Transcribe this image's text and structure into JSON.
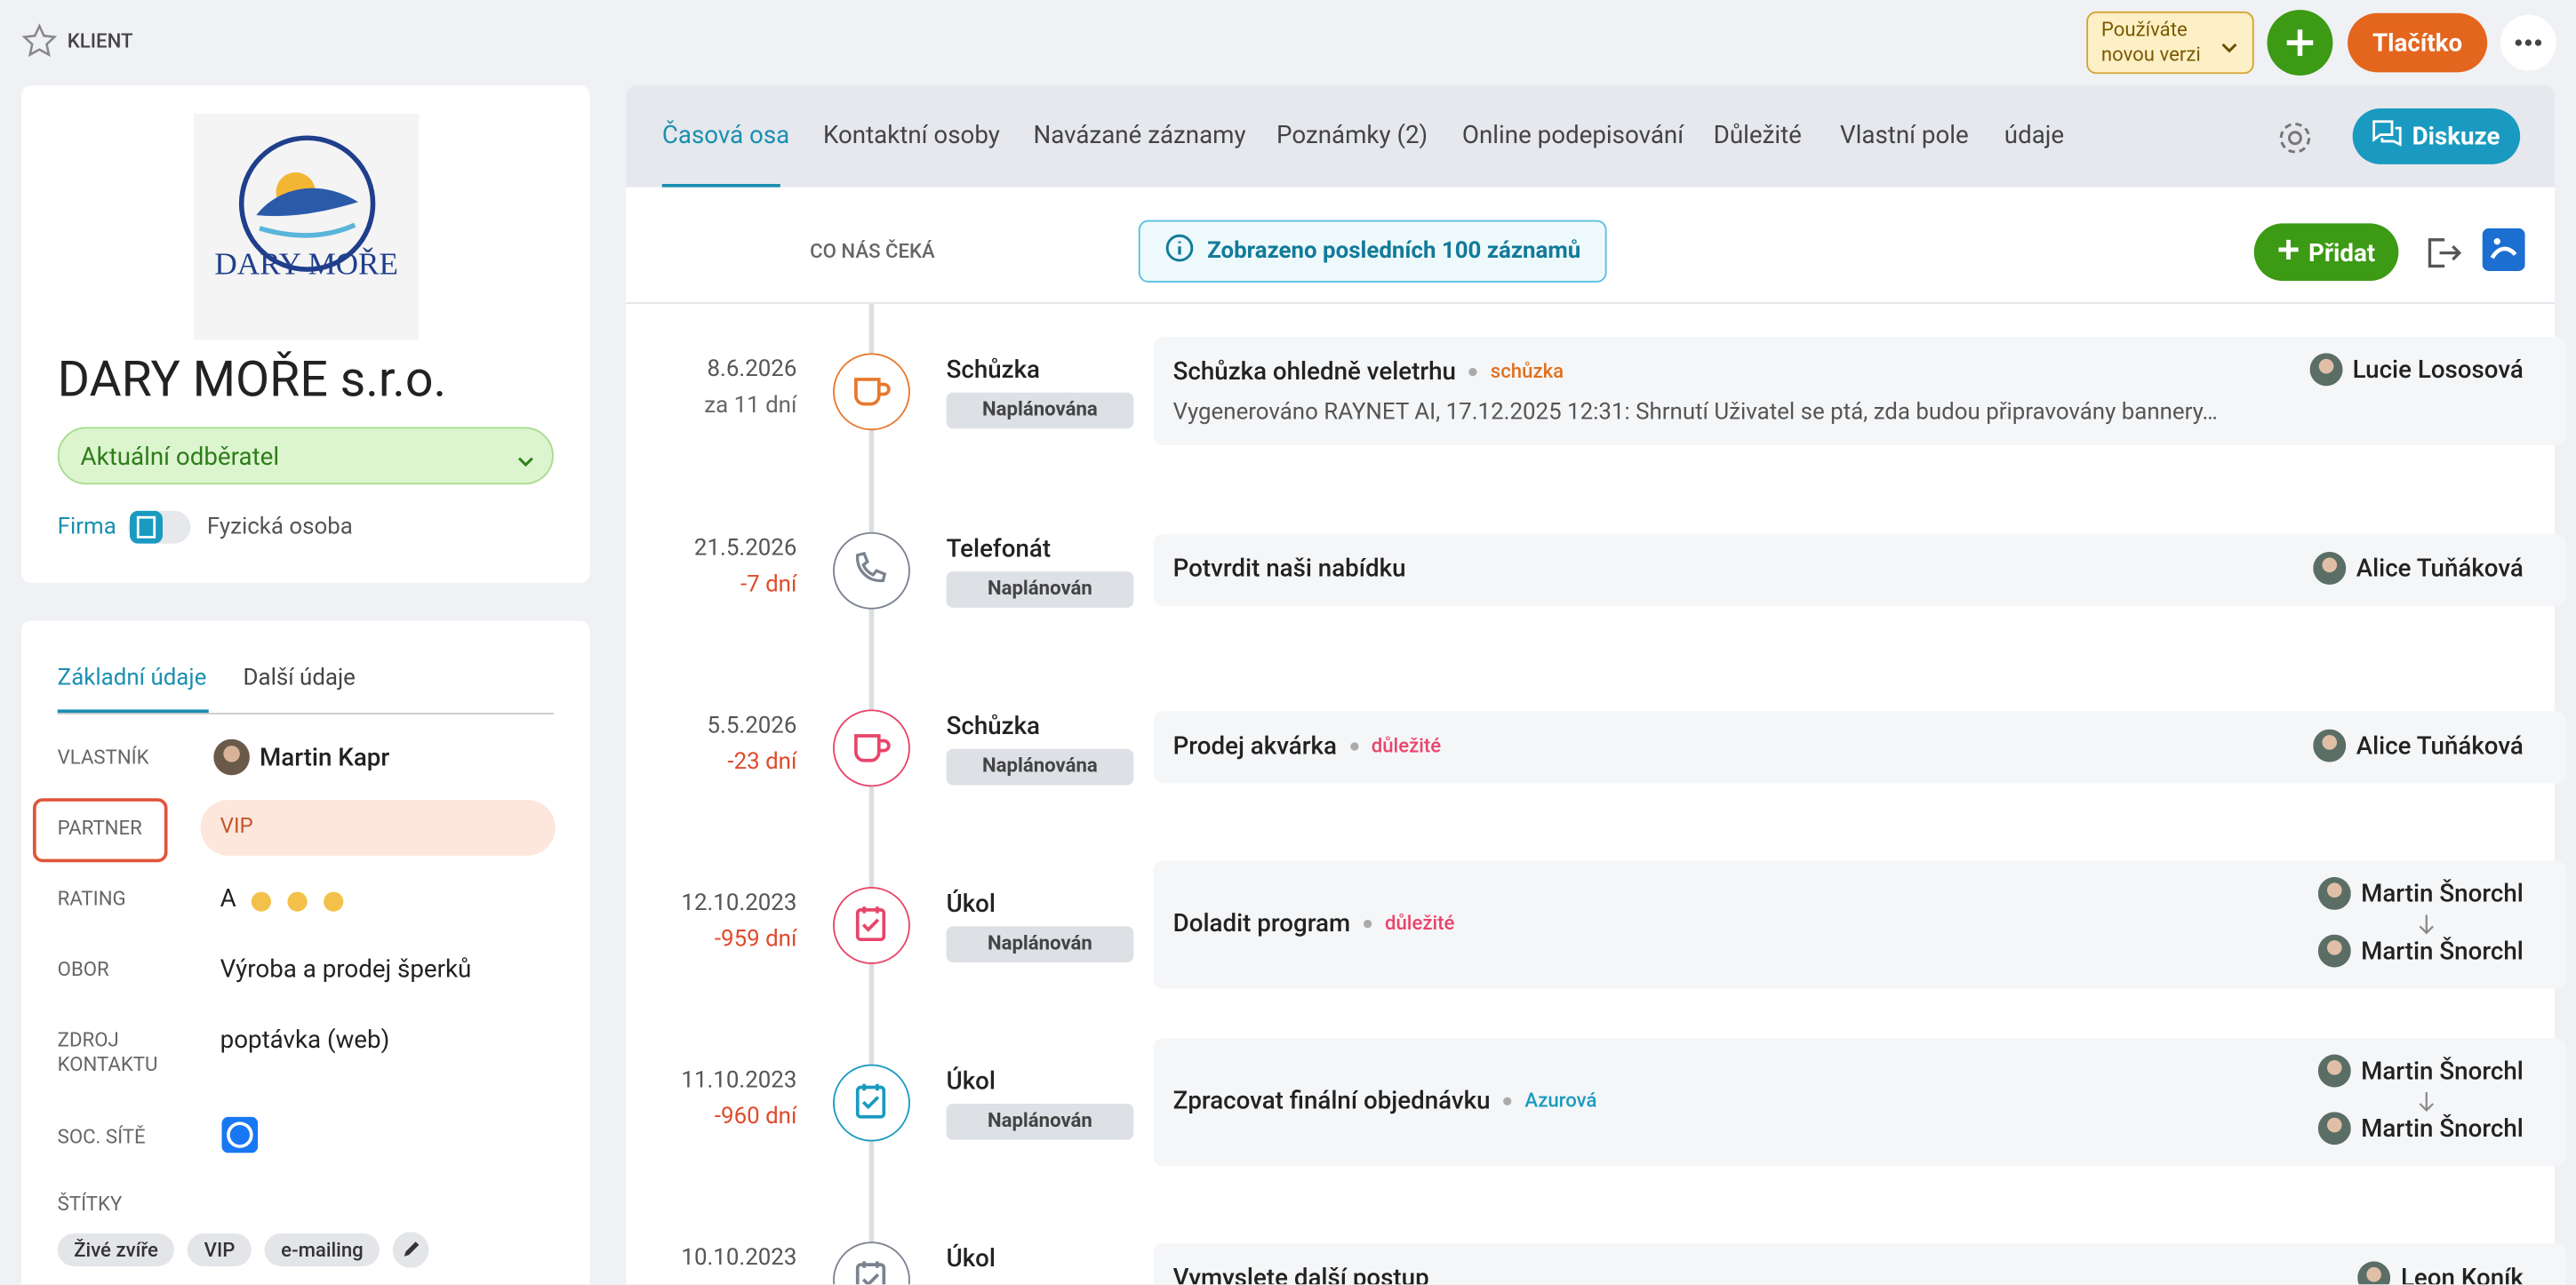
{
  "header": {
    "section": "KLIENT",
    "version_notice": "Používáte novou verzi",
    "button": "Tlačítko"
  },
  "company": {
    "logo_text": "DARY MOŘE",
    "name": "DARY MOŘE s.r.o.",
    "status": "Aktuální odběratel",
    "type_left": "Firma",
    "type_right": "Fyzická osoba"
  },
  "details": {
    "tabs": [
      "Základní údaje",
      "Další údaje"
    ],
    "fields": [
      {
        "label": "VLASTNÍK",
        "value": "Martin Kapr"
      },
      {
        "label": "PARTNER",
        "value": "VIP"
      },
      {
        "label": "RATING",
        "value": "A"
      },
      {
        "label": "OBOR",
        "value": "Výroba a prodej šperků"
      },
      {
        "label": "ZDROJ KONTAKTU",
        "value": "poptávka (web)"
      },
      {
        "label": "SOC. SÍTĚ"
      },
      {
        "label": "ŠTÍTKY"
      }
    ],
    "tags": [
      "Živé zvíře",
      "VIP",
      "e-mailing"
    ]
  },
  "timeline": {
    "tabs": [
      "Časová osa",
      "Kontaktní osoby",
      "Navázané záznamy",
      "Poznámky (2)",
      "Online podepisování",
      "Důležité",
      "Vlastní pole",
      "údaje"
    ],
    "discuss": "Diskuze",
    "upcoming": "CO NÁS ČEKÁ",
    "info": "Zobrazeno posledních 100 záznamů",
    "add": "Přidat",
    "entries": [
      {
        "date": "8.6.2026",
        "relative": "za 11 dní",
        "relative_color": "#666",
        "icon": "cup",
        "icon_color": "#e8782c",
        "type": "Schůzka",
        "state": "Naplánována",
        "title": "Schůzka ohledně veletrhu",
        "tag": "schůzka",
        "tag_color": "#e0701c",
        "description": "Vygenerováno RAYNET AI, 17.12.2025 12:31: Shrnutí Uživatel se ptá, zda budou připravovány bannery…",
        "owner": "Lucie Lososová"
      },
      {
        "date": "21.5.2026",
        "relative": "-7 dní",
        "relative_color": "#e04a2c",
        "icon": "phone",
        "icon_color": "#7b8290",
        "type": "Telefonát",
        "state": "Naplánován",
        "title": "Potvrdit naši nabídku",
        "owner": "Alice Tuňáková"
      },
      {
        "date": "5.5.2026",
        "relative": "-23 dní",
        "relative_color": "#e04a2c",
        "icon": "cup",
        "icon_color": "#e8456a",
        "type": "Schůzka",
        "state": "Naplánována",
        "title": "Prodej akvárka",
        "tag": "důležité",
        "tag_color": "#e8456a",
        "owner": "Alice Tuňáková"
      },
      {
        "date": "12.10.2023",
        "relative": "-959 dní",
        "relative_color": "#e04a2c",
        "icon": "check",
        "icon_color": "#e8456a",
        "type": "Úkol",
        "state": "Naplánován",
        "title": "Doladit program",
        "tag": "důležité",
        "tag_color": "#e8456a",
        "owner": "Martin Šnorchl",
        "assignee": "Martin Šnorchl"
      },
      {
        "date": "11.10.2023",
        "relative": "-960 dní",
        "relative_color": "#e04a2c",
        "icon": "check",
        "icon_color": "#1a9ac0",
        "type": "Úkol",
        "state": "Naplánován",
        "title": "Zpracovat finální objednávku",
        "tag": "Azurová",
        "tag_color": "#1a9ac0",
        "owner": "Martin Šnorchl",
        "assignee": "Martin Šnorchl"
      },
      {
        "date": "10.10.2023",
        "icon": "check",
        "icon_color": "#7b8290",
        "type": "Úkol",
        "title": "Vymyslete další postup",
        "owner": "Leon Koník"
      }
    ]
  }
}
